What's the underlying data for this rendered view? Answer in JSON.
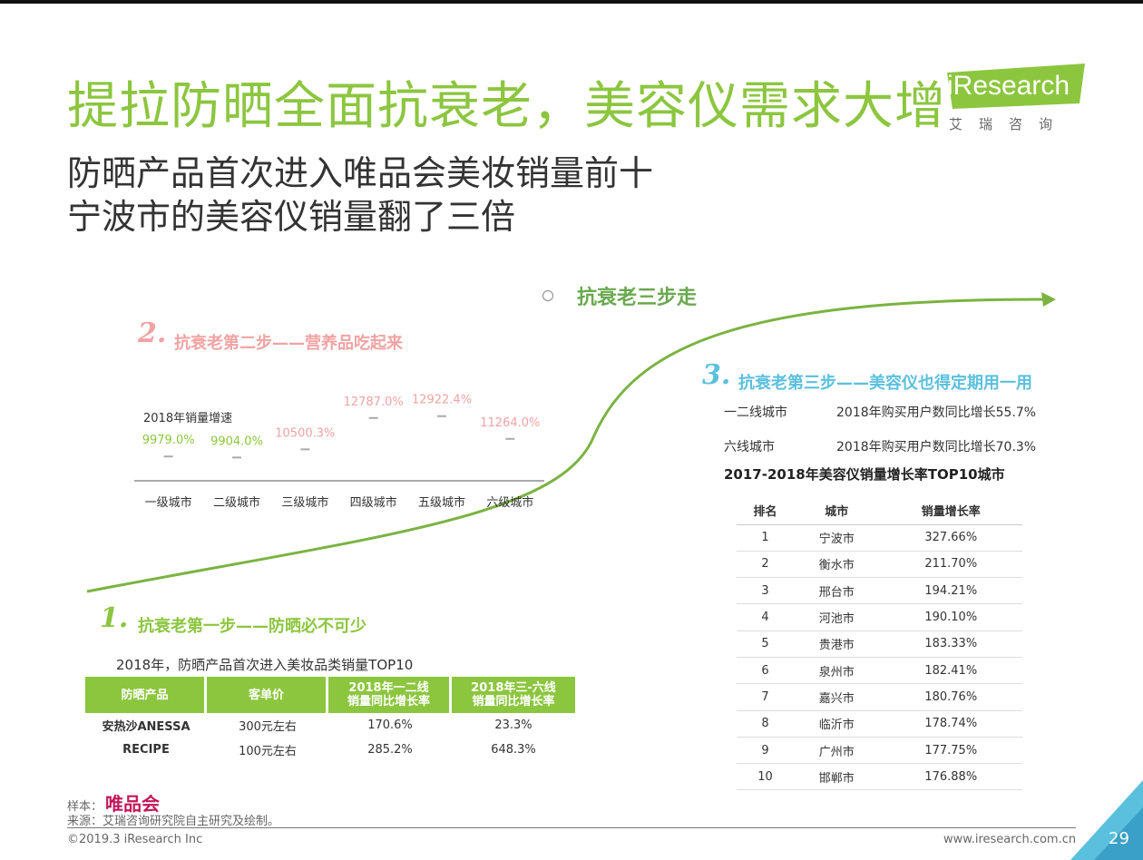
{
  "header": {
    "title": "提拉防晒全面抗衰老，美容仪需求大增",
    "subtitle_line1": "防晒产品首次进入唯品会美妆销量前十",
    "subtitle_line2": "宁波市的美容仪销量翻了三倍"
  },
  "logo": {
    "brand": "iResearch",
    "chinese": "艾瑞咨询",
    "color": "#8cc63f"
  },
  "colors": {
    "green": "#8cc63f",
    "pink": "#f1a3a3",
    "blue": "#5bc0de",
    "magenta": "#c2185b"
  },
  "steps": {
    "heading": "抗衰老三步走",
    "step1": {
      "num": "1.",
      "title": "抗衰老第一步——防晒必不可少"
    },
    "step2": {
      "num": "2.",
      "title": "抗衰老第二步——营养品吃起来"
    },
    "step3": {
      "num": "3.",
      "title": "抗衰老第三步——美容仪也得定期用一用"
    }
  },
  "chart_data": {
    "type": "bar",
    "title": "",
    "series_label": "2018年销量增速",
    "categories": [
      "一级城市",
      "二级城市",
      "三级城市",
      "四级城市",
      "五级城市",
      "六级城市"
    ],
    "values": [
      9979.0,
      9904.0,
      10500.3,
      12787.0,
      12922.4,
      11264.0
    ],
    "data_labels": [
      "9979.0%",
      "9904.0%",
      "10500.3%",
      "12787.0%",
      "12922.4%",
      "11264.0%"
    ],
    "label_colors": [
      "#8cc63f",
      "#8cc63f",
      "#f1a3a3",
      "#f1a3a3",
      "#f1a3a3",
      "#f1a3a3"
    ],
    "unit": "%",
    "grid": false,
    "legend": "none"
  },
  "step3_stats": [
    {
      "city": "一二线城市",
      "stat": "2018年购买用户数同比增长55.7%"
    },
    {
      "city": "六线城市",
      "stat": "2018年购买用户数同比增长70.3%"
    }
  ],
  "top10": {
    "title": "2017-2018年美容仪销量增长率TOP10城市",
    "headers": [
      "排名",
      "城市",
      "销量增长率"
    ],
    "rows": [
      [
        "1",
        "宁波市",
        "327.66%"
      ],
      [
        "2",
        "衡水市",
        "211.70%"
      ],
      [
        "3",
        "邢台市",
        "194.21%"
      ],
      [
        "4",
        "河池市",
        "190.10%"
      ],
      [
        "5",
        "贵港市",
        "183.33%"
      ],
      [
        "6",
        "泉州市",
        "182.41%"
      ],
      [
        "7",
        "嘉兴市",
        "180.76%"
      ],
      [
        "8",
        "临沂市",
        "178.74%"
      ],
      [
        "9",
        "广州市",
        "177.75%"
      ],
      [
        "10",
        "邯郸市",
        "176.88%"
      ]
    ]
  },
  "sunscreen": {
    "title": "2018年，防晒产品首次进入美妆品类销量TOP10",
    "headers": [
      "防晒产品",
      "客单价",
      "2018年一二线\n销量同比增长率",
      "2018年三-六线\n销量同比增长率"
    ],
    "rows": [
      [
        "安热沙ANESSA",
        "300元左右",
        "170.6%",
        "23.3%"
      ],
      [
        "RECIPE",
        "100元左右",
        "285.2%",
        "648.3%"
      ]
    ]
  },
  "footer": {
    "sample_label": "样本：",
    "sample_value": "唯品会",
    "source": "来源：艾瑞咨询研究院自主研究及绘制。",
    "copyright": "©2019.3 iResearch Inc",
    "website": "www.iresearch.com.cn",
    "page": "29"
  }
}
